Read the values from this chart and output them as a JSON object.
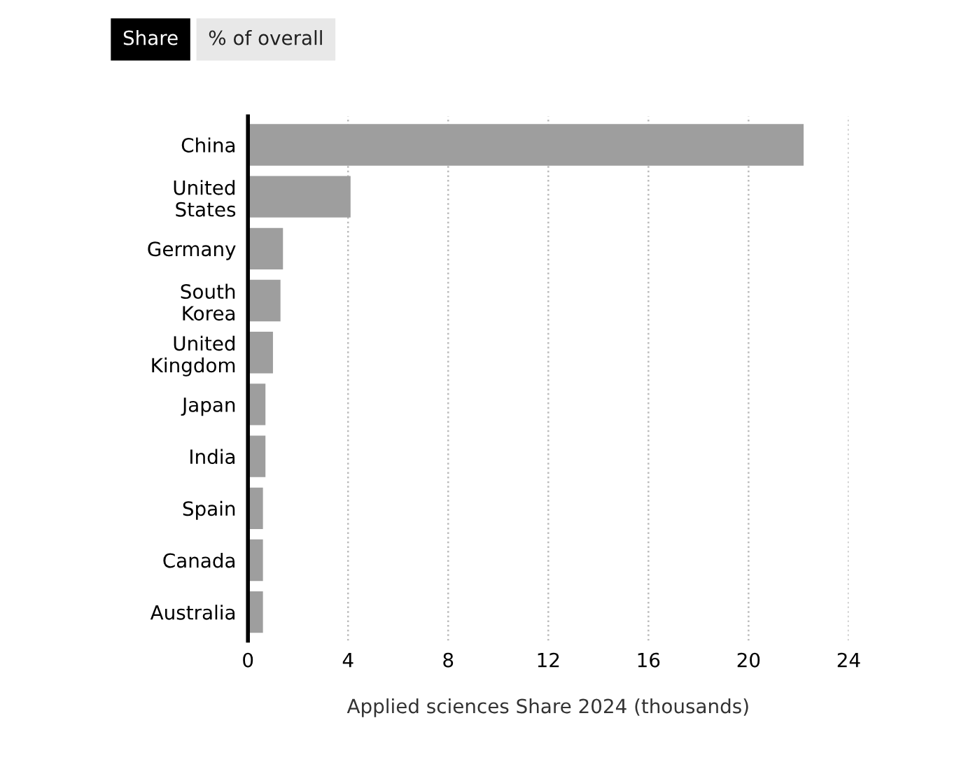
{
  "chart_data": {
    "type": "bar",
    "orientation": "horizontal",
    "xlabel": "Applied sciences Share 2024 (thousands)",
    "categories": [
      "China",
      "United\nStates",
      "Germany",
      "South\nKorea",
      "United\nKingdom",
      "Japan",
      "India",
      "Spain",
      "Canada",
      "Australia"
    ],
    "values": [
      22.2,
      4.1,
      1.4,
      1.3,
      1.0,
      0.7,
      0.7,
      0.6,
      0.6,
      0.6
    ],
    "color": "#9e9e9e",
    "xlim": [
      0,
      24
    ],
    "xticks": [
      0,
      4,
      8,
      12,
      16,
      20,
      24
    ],
    "grid": "x",
    "legend": false,
    "annotations": [
      "Share",
      "% of overall"
    ]
  }
}
